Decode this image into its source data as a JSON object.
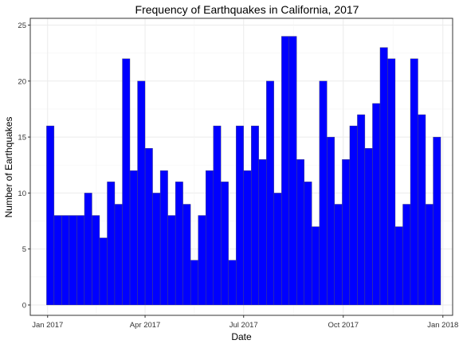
{
  "chart_data": {
    "type": "bar",
    "title": "Frequency of Earthquakes in California, 2017",
    "xlabel": "Date",
    "ylabel": "Number of Earthquakes",
    "ylim": [
      0,
      25
    ],
    "y_ticks": [
      0,
      5,
      10,
      15,
      20,
      25
    ],
    "x_ticks": [
      {
        "date": "2017-01-01",
        "label": "Jan 2017"
      },
      {
        "date": "2017-04-01",
        "label": "Apr 2017"
      },
      {
        "date": "2017-07-01",
        "label": "Jul 2017"
      },
      {
        "date": "2017-10-01",
        "label": "Oct 2017"
      },
      {
        "date": "2018-01-01",
        "label": "Jan 2018"
      }
    ],
    "xlim": [
      "2016-12-16",
      "2018-01-10"
    ],
    "grid": true,
    "bar_color": "#0000ff",
    "bar_width_days": 7,
    "weeks": [
      "2016-12-31",
      "2017-01-07",
      "2017-01-14",
      "2017-01-21",
      "2017-01-28",
      "2017-02-04",
      "2017-02-11",
      "2017-02-18",
      "2017-02-25",
      "2017-03-04",
      "2017-03-11",
      "2017-03-18",
      "2017-03-25",
      "2017-04-01",
      "2017-04-08",
      "2017-04-15",
      "2017-04-22",
      "2017-04-29",
      "2017-05-06",
      "2017-05-13",
      "2017-05-20",
      "2017-05-27",
      "2017-06-03",
      "2017-06-10",
      "2017-06-17",
      "2017-06-24",
      "2017-07-01",
      "2017-07-08",
      "2017-07-15",
      "2017-07-22",
      "2017-07-29",
      "2017-08-05",
      "2017-08-12",
      "2017-08-19",
      "2017-08-26",
      "2017-09-02",
      "2017-09-09",
      "2017-09-16",
      "2017-09-23",
      "2017-09-30",
      "2017-10-07",
      "2017-10-14",
      "2017-10-21",
      "2017-10-28",
      "2017-11-04",
      "2017-11-11",
      "2017-11-18",
      "2017-11-25",
      "2017-12-02",
      "2017-12-09",
      "2017-12-16",
      "2017-12-23",
      "2017-12-30"
    ],
    "values": [
      16,
      8,
      8,
      8,
      8,
      10,
      8,
      6,
      11,
      9,
      22,
      12,
      20,
      14,
      10,
      12,
      8,
      11,
      9,
      4,
      8,
      12,
      16,
      11,
      4,
      16,
      12,
      16,
      13,
      20,
      10,
      24,
      24,
      13,
      11,
      7,
      20,
      15,
      9,
      13,
      16,
      17,
      14,
      18,
      23,
      22,
      7,
      9,
      22,
      17,
      9,
      15,
      0
    ]
  }
}
